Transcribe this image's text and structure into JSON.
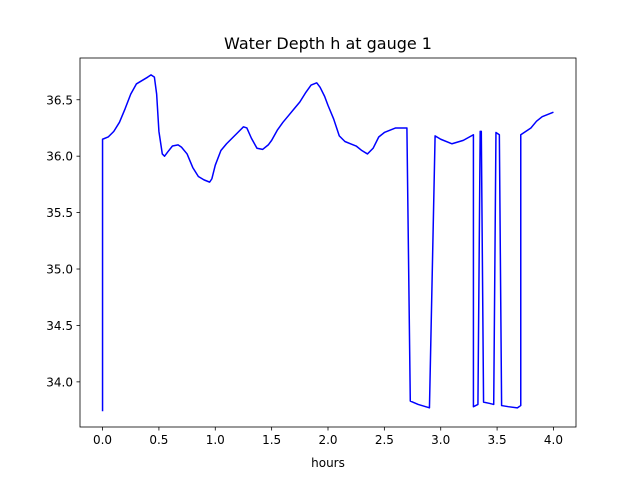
{
  "chart_data": {
    "type": "line",
    "title": "Water Depth h at gauge 1",
    "xlabel": "hours",
    "ylabel": "",
    "xlim": [
      -0.2,
      4.2
    ],
    "ylim": [
      33.6,
      36.87
    ],
    "grid": false,
    "legend": "none",
    "x_ticks": [
      0.0,
      0.5,
      1.0,
      1.5,
      2.0,
      2.5,
      3.0,
      3.5,
      4.0
    ],
    "x_tick_labels": [
      "0.0",
      "0.5",
      "1.0",
      "1.5",
      "2.0",
      "2.5",
      "3.0",
      "3.5",
      "4.0"
    ],
    "y_ticks": [
      34.0,
      34.5,
      35.0,
      35.5,
      36.0,
      36.5
    ],
    "y_tick_labels": [
      "34.0",
      "34.5",
      "35.0",
      "35.5",
      "36.0",
      "36.5"
    ],
    "series": [
      {
        "color": "#0000ff",
        "x": [
          0.0,
          0.0,
          0.05,
          0.1,
          0.15,
          0.2,
          0.25,
          0.3,
          0.35,
          0.4,
          0.43,
          0.46,
          0.48,
          0.5,
          0.53,
          0.55,
          0.58,
          0.62,
          0.67,
          0.7,
          0.75,
          0.8,
          0.85,
          0.9,
          0.95,
          0.97,
          1.0,
          1.05,
          1.1,
          1.15,
          1.2,
          1.25,
          1.28,
          1.32,
          1.37,
          1.42,
          1.47,
          1.5,
          1.55,
          1.6,
          1.65,
          1.7,
          1.75,
          1.8,
          1.85,
          1.9,
          1.93,
          1.97,
          2.0,
          2.05,
          2.1,
          2.15,
          2.2,
          2.25,
          2.3,
          2.35,
          2.4,
          2.45,
          2.5,
          2.55,
          2.6,
          2.65,
          2.7,
          2.73,
          2.73,
          2.8,
          2.9,
          2.95,
          2.95,
          3.0,
          3.1,
          3.2,
          3.29,
          3.29,
          3.33,
          3.35,
          3.36,
          3.38,
          3.38,
          3.43,
          3.47,
          3.49,
          3.49,
          3.52,
          3.54,
          3.54,
          3.6,
          3.68,
          3.71,
          3.71,
          3.74,
          3.8,
          3.85,
          3.9,
          3.95,
          4.0
        ],
        "y": [
          33.74,
          36.15,
          36.17,
          36.22,
          36.3,
          36.42,
          36.55,
          36.64,
          36.67,
          36.7,
          36.72,
          36.7,
          36.55,
          36.22,
          36.02,
          36.0,
          36.04,
          36.09,
          36.1,
          36.08,
          36.02,
          35.9,
          35.82,
          35.79,
          35.77,
          35.8,
          35.92,
          36.05,
          36.11,
          36.16,
          36.21,
          36.26,
          36.25,
          36.16,
          36.07,
          36.06,
          36.1,
          36.14,
          36.23,
          36.3,
          36.36,
          36.42,
          36.48,
          36.56,
          36.63,
          36.65,
          36.61,
          36.53,
          36.45,
          36.33,
          36.18,
          36.13,
          36.11,
          36.09,
          36.05,
          36.02,
          36.07,
          36.17,
          36.21,
          36.23,
          36.25,
          36.25,
          36.25,
          33.83,
          33.83,
          33.8,
          33.77,
          36.18,
          36.18,
          36.15,
          36.11,
          36.14,
          36.19,
          33.78,
          33.8,
          36.22,
          36.22,
          33.82,
          33.82,
          33.81,
          33.8,
          36.21,
          36.21,
          36.19,
          33.79,
          33.79,
          33.78,
          33.77,
          33.79,
          36.19,
          36.21,
          36.25,
          36.31,
          36.35,
          36.37,
          36.39
        ]
      }
    ]
  }
}
